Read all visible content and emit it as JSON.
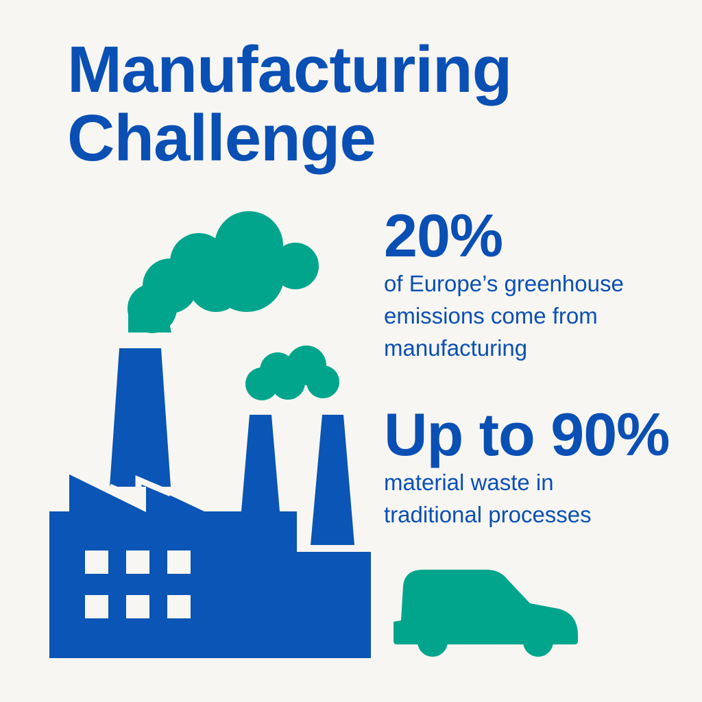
{
  "title": {
    "line1": "Manufacturing",
    "line2": "Challenge"
  },
  "stats": [
    {
      "value": "20%",
      "desc_lines": [
        "of Europe’s greenhouse",
        "emissions come from",
        "manufacturing"
      ]
    },
    {
      "value": "Up to 90%",
      "desc_lines": [
        "material waste in",
        "traditional processes"
      ]
    }
  ],
  "illustrations": {
    "factory": "factory-icon",
    "clouds": "smoke-cloud-icon",
    "car": "car-icon"
  },
  "colors": {
    "primary_blue": "#0a4fb4",
    "green": "#00a58c",
    "background": "#f7f6f2"
  }
}
